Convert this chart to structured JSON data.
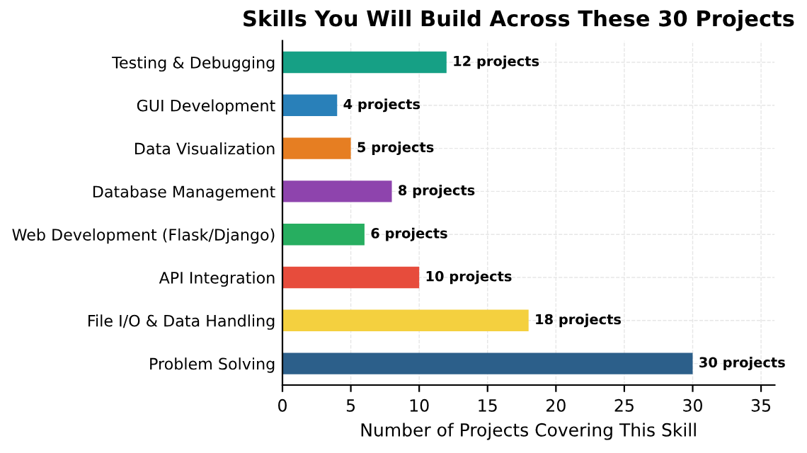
{
  "chart_data": {
    "type": "bar",
    "orientation": "horizontal",
    "title": "Skills You Will Build Across These 30 Projects",
    "xlabel": "Number of Projects Covering This Skill",
    "categories": [
      "Testing & Debugging",
      "GUI Development",
      "Data Visualization",
      "Database Management",
      "Web Development (Flask/Django)",
      "API Integration",
      "File I/O & Data Handling",
      "Problem Solving"
    ],
    "values": [
      12,
      4,
      5,
      8,
      6,
      10,
      18,
      30
    ],
    "colors": [
      "#16a085",
      "#2980b9",
      "#e67e22",
      "#8e44ad",
      "#27ae60",
      "#e74c3c",
      "#f4d03f",
      "#2c5f8a"
    ],
    "value_labels": [
      "12 projects",
      "4 projects",
      "5 projects",
      "8 projects",
      "6 projects",
      "10 projects",
      "18 projects",
      "30 projects"
    ],
    "xlim": [
      0,
      36
    ],
    "xticks": [
      0,
      5,
      10,
      15,
      20,
      25,
      30,
      35
    ],
    "grid": true
  }
}
